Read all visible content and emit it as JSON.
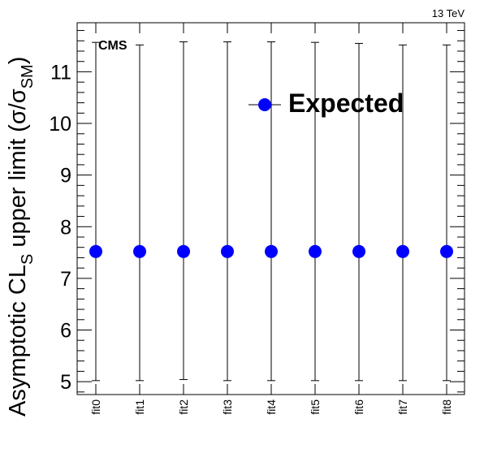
{
  "chart_data": {
    "type": "scatter",
    "energy_label": "13 TeV",
    "experiment_label": "CMS",
    "ylabel": "Asymptotic CL_S upper limit (σ/σ_SM)",
    "ylabel_parts": {
      "main": "Asymptotic CL",
      "main_sub": "S",
      "middle": " upper limit (σ/σ",
      "ratio_sub": "SM",
      "end": ")"
    },
    "xlabel": "",
    "ylim": [
      4.75,
      11.95
    ],
    "y_major_ticks": [
      5,
      6,
      7,
      8,
      9,
      10,
      11
    ],
    "categories": [
      "fit0",
      "fit1",
      "fit2",
      "fit3",
      "fit4",
      "fit5",
      "fit6",
      "fit7",
      "fit8"
    ],
    "series": [
      {
        "name": "Expected",
        "values": [
          7.52,
          7.52,
          7.52,
          7.52,
          7.52,
          7.52,
          7.52,
          7.52,
          7.52
        ],
        "err_low": [
          5.02,
          5.02,
          5.04,
          5.02,
          5.02,
          5.02,
          5.02,
          5.02,
          5.02
        ],
        "err_high": [
          11.57,
          11.52,
          11.58,
          11.58,
          11.58,
          11.57,
          11.55,
          11.52,
          11.52
        ]
      }
    ],
    "marker_color": "#0000ff",
    "legend_position": "top-right",
    "grid": false
  }
}
